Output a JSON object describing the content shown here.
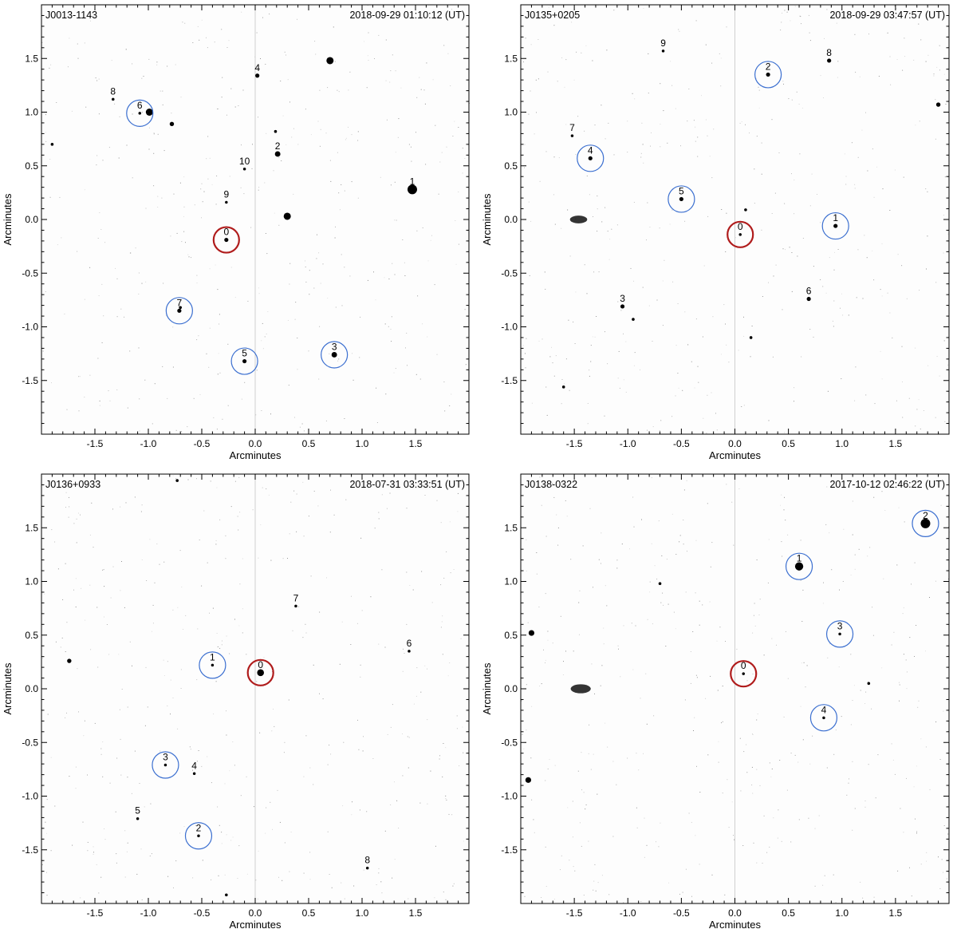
{
  "chart_data": [
    {
      "type": "scatter",
      "field": "J0013-1143",
      "timestamp": "2018-09-29 01:10:12 (UT)",
      "xlabel": "Arcminutes",
      "ylabel": "Arcminutes",
      "xlim": [
        -2.0,
        2.0
      ],
      "ylim": [
        -2.0,
        2.0
      ],
      "xticks": [
        "-1.5",
        "-1.0",
        "-0.5",
        "0.0",
        "0.5",
        "1.0",
        "1.5"
      ],
      "yticks": [
        "1.5",
        "1.0",
        "0.5",
        "0.0",
        "-0.5",
        "-1.0",
        "-1.5"
      ],
      "sources": [
        {
          "label": "0",
          "x": -0.27,
          "y": -0.19,
          "mag": 2,
          "circle": "target"
        },
        {
          "label": "1",
          "x": 1.47,
          "y": 0.28,
          "mag": 6,
          "circle": "none"
        },
        {
          "label": "2",
          "x": 0.21,
          "y": 0.61,
          "mag": 3,
          "circle": "none"
        },
        {
          "label": "3",
          "x": 0.74,
          "y": -1.26,
          "mag": 3,
          "circle": "reference"
        },
        {
          "label": "4",
          "x": 0.02,
          "y": 1.34,
          "mag": 2,
          "circle": "none"
        },
        {
          "label": "5",
          "x": -0.1,
          "y": -1.32,
          "mag": 2,
          "circle": "reference"
        },
        {
          "label": "6",
          "x": -1.08,
          "y": 0.99,
          "mag": 1,
          "circle": "reference"
        },
        {
          "label": "7",
          "x": -0.71,
          "y": -0.85,
          "mag": 2,
          "circle": "reference"
        },
        {
          "label": "8",
          "x": -1.33,
          "y": 1.12,
          "mag": 1,
          "circle": "none"
        },
        {
          "label": "9",
          "x": -0.27,
          "y": 0.16,
          "mag": 1,
          "circle": "none"
        },
        {
          "label": "10",
          "x": -0.1,
          "y": 0.47,
          "mag": 1,
          "circle": "none"
        }
      ],
      "field_stars": [
        {
          "x": 0.7,
          "y": 1.48,
          "mag": 4
        },
        {
          "x": -0.99,
          "y": 1.0,
          "mag": 4
        },
        {
          "x": 0.3,
          "y": 0.03,
          "mag": 4
        },
        {
          "x": -0.78,
          "y": 0.89,
          "mag": 2
        },
        {
          "x": -0.7,
          "y": -0.82,
          "mag": 1
        },
        {
          "x": 0.19,
          "y": 0.82,
          "mag": 1
        },
        {
          "x": -1.9,
          "y": 0.7,
          "mag": 1
        }
      ]
    },
    {
      "type": "scatter",
      "field": "J0135+0205",
      "timestamp": "2018-09-29 03:47:57 (UT)",
      "xlabel": "Arcminutes",
      "ylabel": "Arcminutes",
      "xlim": [
        -2.0,
        2.0
      ],
      "ylim": [
        -2.0,
        2.0
      ],
      "xticks": [
        "-1.5",
        "-1.0",
        "-0.5",
        "0.0",
        "0.5",
        "1.0",
        "1.5"
      ],
      "yticks": [
        "1.5",
        "1.0",
        "0.5",
        "0.0",
        "-0.5",
        "-1.0",
        "-1.5"
      ],
      "sources": [
        {
          "label": "0",
          "x": 0.05,
          "y": -0.14,
          "mag": 1,
          "circle": "target"
        },
        {
          "label": "1",
          "x": 0.94,
          "y": -0.06,
          "mag": 2,
          "circle": "reference"
        },
        {
          "label": "2",
          "x": 0.31,
          "y": 1.35,
          "mag": 2,
          "circle": "reference"
        },
        {
          "label": "3",
          "x": -1.05,
          "y": -0.81,
          "mag": 2,
          "circle": "none"
        },
        {
          "label": "4",
          "x": -1.35,
          "y": 0.57,
          "mag": 2,
          "circle": "reference"
        },
        {
          "label": "5",
          "x": -0.5,
          "y": 0.19,
          "mag": 2,
          "circle": "reference"
        },
        {
          "label": "6",
          "x": 0.69,
          "y": -0.74,
          "mag": 2,
          "circle": "none"
        },
        {
          "label": "7",
          "x": -1.52,
          "y": 0.78,
          "mag": 1,
          "circle": "none"
        },
        {
          "label": "8",
          "x": 0.88,
          "y": 1.48,
          "mag": 2,
          "circle": "none"
        },
        {
          "label": "9",
          "x": -0.67,
          "y": 1.57,
          "mag": 1,
          "circle": "none"
        }
      ],
      "field_stars": [
        {
          "x": 1.9,
          "y": 1.07,
          "mag": 2
        },
        {
          "x": -1.46,
          "y": 0.0,
          "mag": 5
        },
        {
          "x": -0.95,
          "y": -0.93,
          "mag": 1
        },
        {
          "x": 0.1,
          "y": 0.09,
          "mag": 1
        },
        {
          "x": 0.15,
          "y": -1.1,
          "mag": 1
        },
        {
          "x": -1.6,
          "y": -1.56,
          "mag": 1
        }
      ]
    },
    {
      "type": "scatter",
      "field": "J0136+0933",
      "timestamp": "2018-07-31 03:33:51 (UT)",
      "xlabel": "Arcminutes",
      "ylabel": "Arcminutes",
      "xlim": [
        -2.0,
        2.0
      ],
      "ylim": [
        -2.0,
        2.0
      ],
      "xticks": [
        "-1.5",
        "-1.0",
        "-0.5",
        "0.0",
        "0.5",
        "1.0",
        "1.5"
      ],
      "yticks": [
        "1.5",
        "1.0",
        "0.5",
        "0.0",
        "-0.5",
        "-1.0",
        "-1.5"
      ],
      "sources": [
        {
          "label": "0",
          "x": 0.05,
          "y": 0.15,
          "mag": 4,
          "circle": "target"
        },
        {
          "label": "1",
          "x": -0.4,
          "y": 0.22,
          "mag": 1,
          "circle": "reference"
        },
        {
          "label": "2",
          "x": -0.53,
          "y": -1.37,
          "mag": 1,
          "circle": "reference"
        },
        {
          "label": "3",
          "x": -0.84,
          "y": -0.71,
          "mag": 1,
          "circle": "reference"
        },
        {
          "label": "4",
          "x": -0.57,
          "y": -0.79,
          "mag": 1,
          "circle": "none"
        },
        {
          "label": "5",
          "x": -1.1,
          "y": -1.21,
          "mag": 1,
          "circle": "none"
        },
        {
          "label": "6",
          "x": 1.44,
          "y": 0.35,
          "mag": 1,
          "circle": "none"
        },
        {
          "label": "7",
          "x": 0.38,
          "y": 0.77,
          "mag": 1,
          "circle": "none"
        },
        {
          "label": "8",
          "x": 1.05,
          "y": -1.67,
          "mag": 1,
          "circle": "none"
        }
      ],
      "field_stars": [
        {
          "x": -1.74,
          "y": 0.26,
          "mag": 2
        },
        {
          "x": -0.73,
          "y": 1.94,
          "mag": 1
        },
        {
          "x": -0.27,
          "y": -1.92,
          "mag": 1
        }
      ]
    },
    {
      "type": "scatter",
      "field": "J0138-0322",
      "timestamp": "2017-10-12 02:46:22 (UT)",
      "xlabel": "Arcminutes",
      "ylabel": "Arcminutes",
      "xlim": [
        -2.0,
        2.0
      ],
      "ylim": [
        -2.0,
        2.0
      ],
      "xticks": [
        "-1.5",
        "-1.0",
        "-0.5",
        "0.0",
        "0.5",
        "1.0",
        "1.5"
      ],
      "yticks": [
        "1.5",
        "1.0",
        "0.5",
        "0.0",
        "-0.5",
        "-1.0",
        "-1.5"
      ],
      "sources": [
        {
          "label": "0",
          "x": 0.08,
          "y": 0.14,
          "mag": 1,
          "circle": "target"
        },
        {
          "label": "1",
          "x": 0.6,
          "y": 1.14,
          "mag": 5,
          "circle": "reference"
        },
        {
          "label": "2",
          "x": 1.78,
          "y": 1.54,
          "mag": 6,
          "circle": "reference"
        },
        {
          "label": "3",
          "x": 0.98,
          "y": 0.51,
          "mag": 1,
          "circle": "reference"
        },
        {
          "label": "4",
          "x": 0.83,
          "y": -0.27,
          "mag": 1,
          "circle": "reference"
        }
      ],
      "field_stars": [
        {
          "x": -1.9,
          "y": 0.52,
          "mag": 3
        },
        {
          "x": -1.93,
          "y": -0.85,
          "mag": 3
        },
        {
          "x": -1.44,
          "y": 0.0,
          "mag": 6
        },
        {
          "x": 1.25,
          "y": 0.05,
          "mag": 1
        },
        {
          "x": -0.7,
          "y": 0.98,
          "mag": 1
        }
      ]
    }
  ],
  "colors": {
    "target_circle": "#b01c1c",
    "reference_circle": "#3b6fd0",
    "label_text": "#10207a",
    "star": "#000000",
    "frame": "#000000"
  }
}
